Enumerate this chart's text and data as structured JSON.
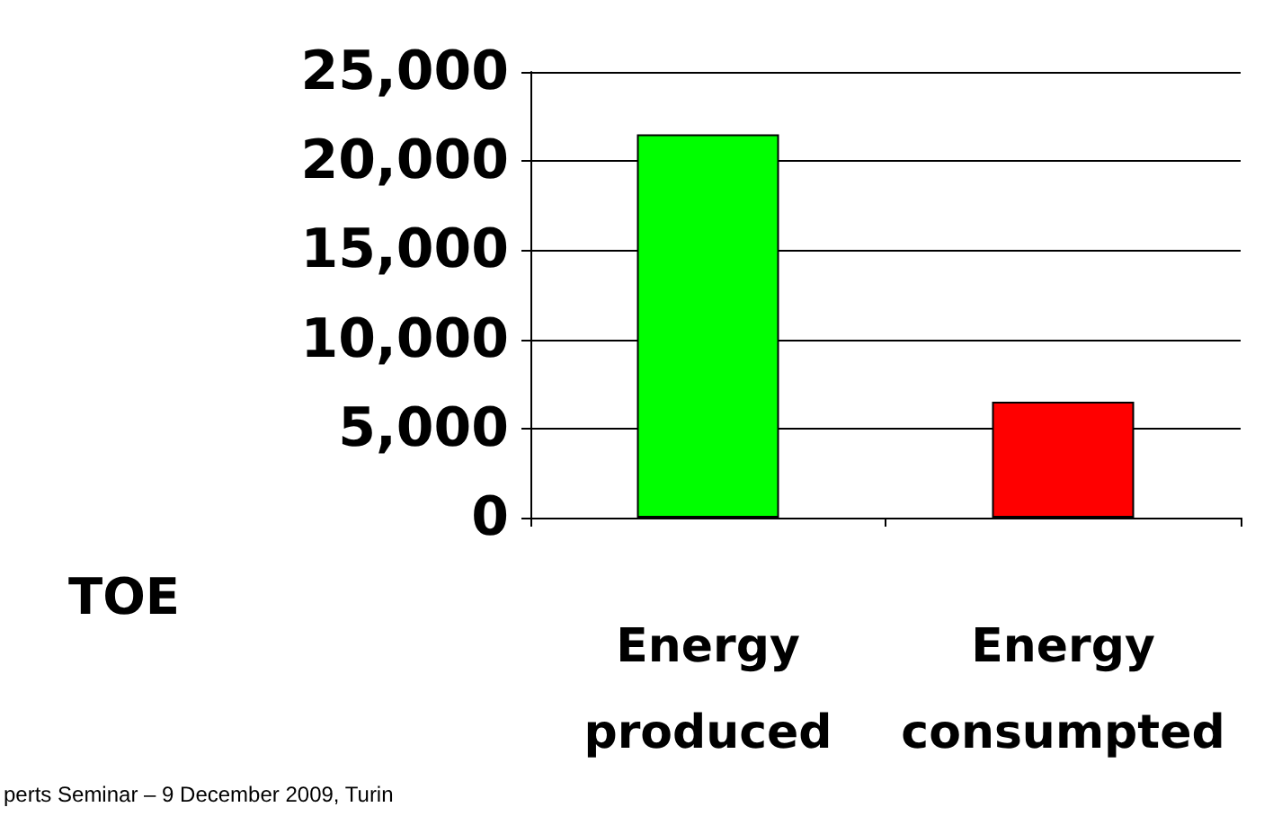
{
  "chart_data": {
    "type": "bar",
    "ylabel": "TOE",
    "categories": [
      "Energy produced",
      "Energy consumpted"
    ],
    "colors": [
      "#00ff00",
      "#ff0000"
    ],
    "values": [
      21500,
      6500
    ],
    "ylim": [
      0,
      25000
    ],
    "yticks": [
      0,
      {
        "value": 5000,
        "label": "5,000"
      },
      {
        "value": 10000,
        "label": "10,000"
      },
      {
        "value": 15000,
        "label": "15,000"
      },
      {
        "value": 20000,
        "label": "20,000"
      },
      {
        "value": 25000,
        "label": "25,000"
      }
    ],
    "grid": "y",
    "annotations": [
      "perts Seminar – 9 December 2009, Turin"
    ]
  }
}
